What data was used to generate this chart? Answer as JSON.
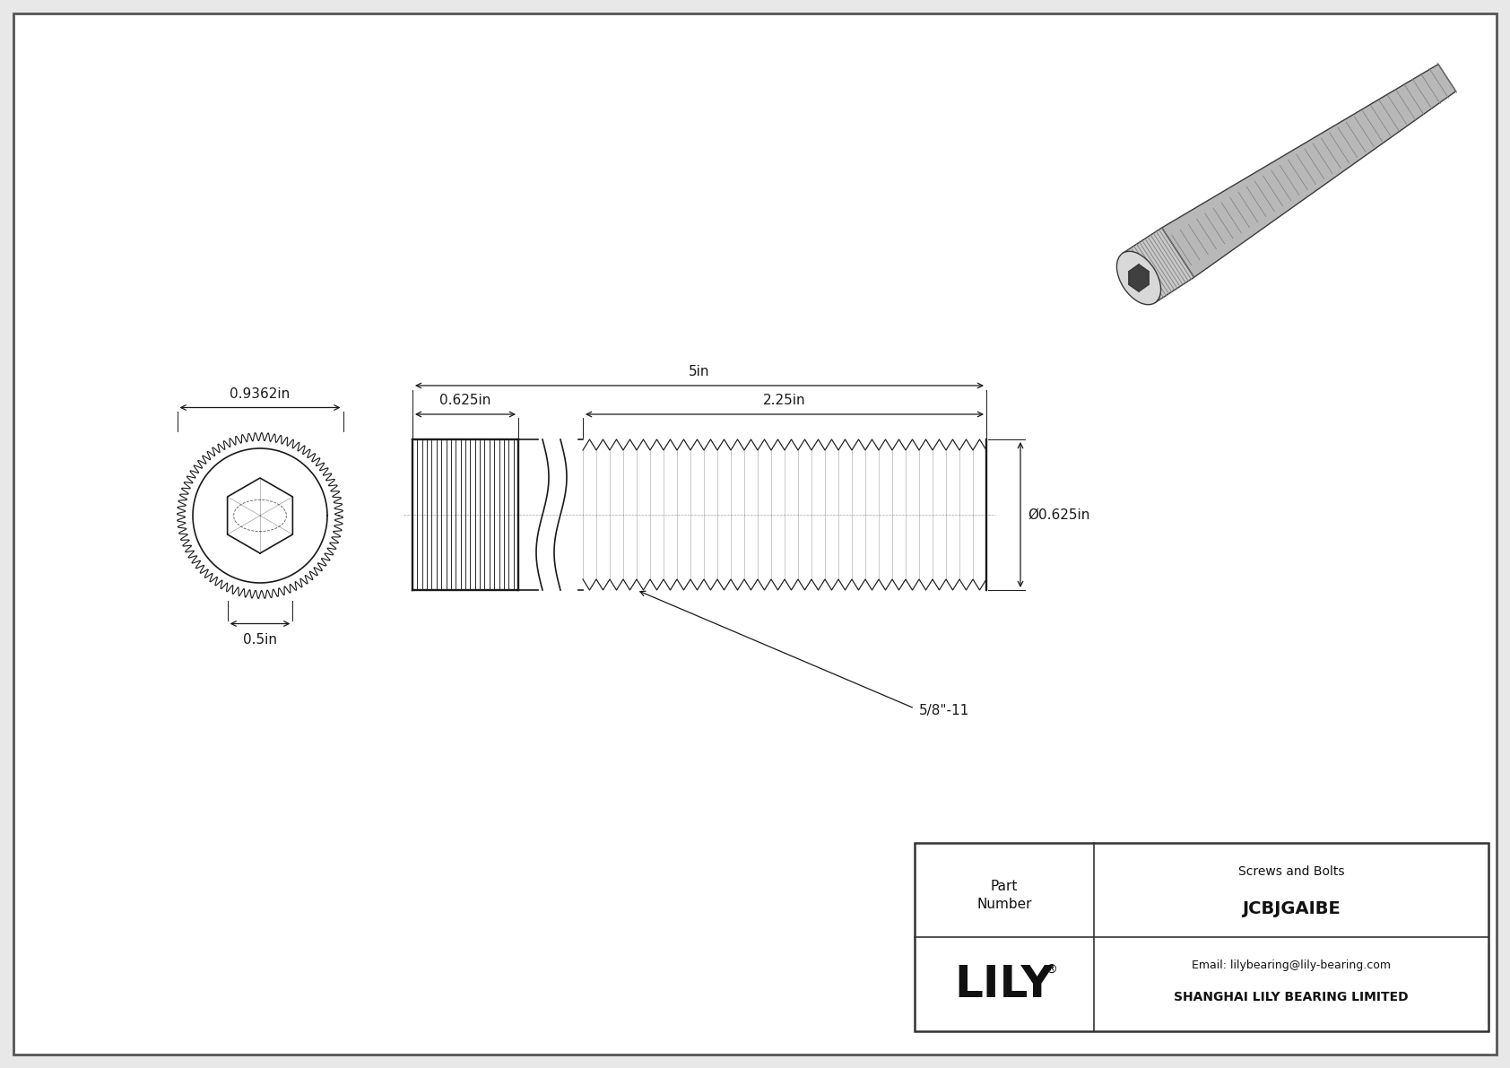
{
  "bg_color": "#e8e8e8",
  "inner_bg": "#ffffff",
  "line_color": "#1a1a1a",
  "title_company": "SHANGHAI LILY BEARING LIMITED",
  "title_email": "Email: lilybearing@lily-bearing.com",
  "part_number": "JCBJGAIBE",
  "part_category": "Screws and Bolts",
  "dim_head_width": "0.9362in",
  "dim_head_socket": "0.5in",
  "dim_total_length": "5in",
  "dim_head_length": "0.625in",
  "dim_thread_length": "2.25in",
  "dim_diameter": "Ø0.625in",
  "dim_thread_pitch": "5/8\"-11",
  "lw": 1.2
}
